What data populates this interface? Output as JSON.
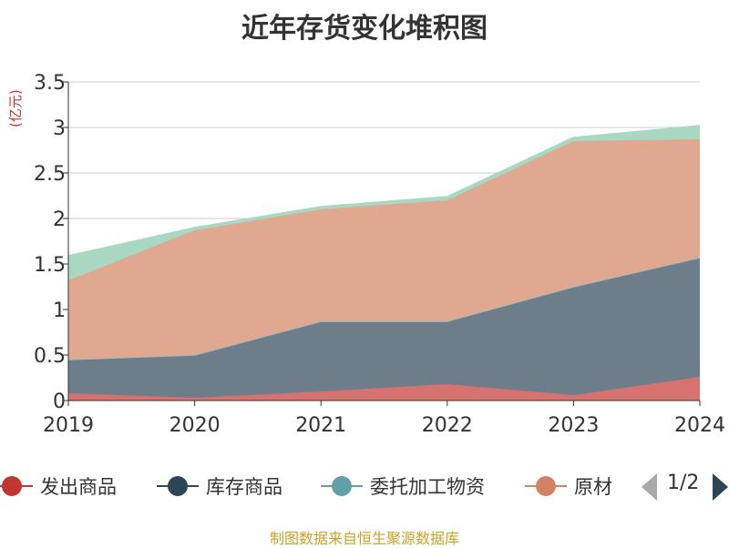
{
  "title": "近年存货变化堆积图",
  "unit": "(亿元)",
  "source": "制图数据来自恒生聚源数据库",
  "legend": {
    "page_text": "1/2",
    "items": [
      {
        "label": "发出商品",
        "color": "#c23531"
      },
      {
        "label": "库存商品",
        "color": "#2f4554"
      },
      {
        "label": "委托加工物资",
        "color": "#61a0a8"
      },
      {
        "label": "原材",
        "color": "#d48265"
      }
    ]
  },
  "chart_data": {
    "type": "area",
    "stacked": true,
    "title": "近年存货变化堆积图",
    "ylabel": "(亿元)",
    "x": [
      "2019",
      "2020",
      "2021",
      "2022",
      "2023",
      "2024"
    ],
    "ylim": [
      0,
      3.5
    ],
    "yticks": [
      "0",
      "0.5",
      "1",
      "1.5",
      "2",
      "2.5",
      "3",
      "3.5"
    ],
    "grid": true,
    "legend_position": "bottom",
    "series": [
      {
        "name": "发出商品",
        "color": "#d6726f",
        "values": [
          0.08,
          0.03,
          0.1,
          0.18,
          0.06,
          0.26
        ]
      },
      {
        "name": "库存商品",
        "color": "#6e7d8a",
        "values": [
          0.37,
          0.47,
          0.77,
          0.69,
          1.19,
          1.31
        ]
      },
      {
        "name": "委托加工物资",
        "color": "#8fc3c6",
        "values": [
          0.0,
          0.0,
          0.0,
          0.0,
          0.0,
          0.0
        ]
      },
      {
        "name": "原材",
        "color": "#e0a891",
        "values": [
          0.87,
          1.37,
          1.23,
          1.33,
          1.6,
          1.3
        ]
      },
      {
        "name": "",
        "color": "#a8d8c2",
        "values": [
          0.27,
          0.03,
          0.03,
          0.04,
          0.04,
          0.15
        ]
      }
    ]
  }
}
